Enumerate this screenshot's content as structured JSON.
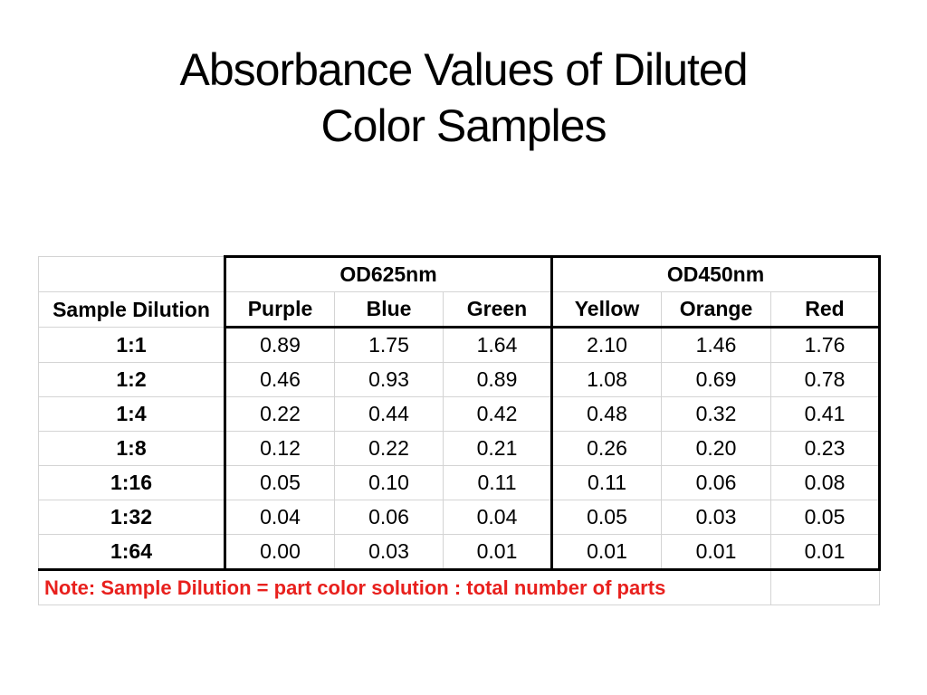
{
  "title": {
    "line1": "Absorbance Values of Diluted",
    "line2": "Color Samples"
  },
  "table": {
    "group_headers": [
      "OD625nm",
      "OD450nm"
    ],
    "row_header_label": "Sample Dilution",
    "columns": [
      "Purple",
      "Blue",
      "Green",
      "Yellow",
      "Orange",
      "Red"
    ],
    "rows": [
      {
        "dilution": "1:1",
        "values": [
          "0.89",
          "1.75",
          "1.64",
          "2.10",
          "1.46",
          "1.76"
        ]
      },
      {
        "dilution": "1:2",
        "values": [
          "0.46",
          "0.93",
          "0.89",
          "1.08",
          "0.69",
          "0.78"
        ]
      },
      {
        "dilution": "1:4",
        "values": [
          "0.22",
          "0.44",
          "0.42",
          "0.48",
          "0.32",
          "0.41"
        ]
      },
      {
        "dilution": "1:8",
        "values": [
          "0.12",
          "0.22",
          "0.21",
          "0.26",
          "0.20",
          "0.23"
        ]
      },
      {
        "dilution": "1:16",
        "values": [
          "0.05",
          "0.10",
          "0.11",
          "0.11",
          "0.06",
          "0.08"
        ]
      },
      {
        "dilution": "1:32",
        "values": [
          "0.04",
          "0.06",
          "0.04",
          "0.05",
          "0.03",
          "0.05"
        ]
      },
      {
        "dilution": "1:64",
        "values": [
          "0.00",
          "0.03",
          "0.01",
          "0.01",
          "0.01",
          "0.01"
        ]
      }
    ],
    "note": "Note: Sample Dilution = part color solution : total number of parts"
  },
  "colors": {
    "note_text": "#e8201d",
    "grid_line": "#d4d4d4",
    "frame_line": "#000000"
  }
}
